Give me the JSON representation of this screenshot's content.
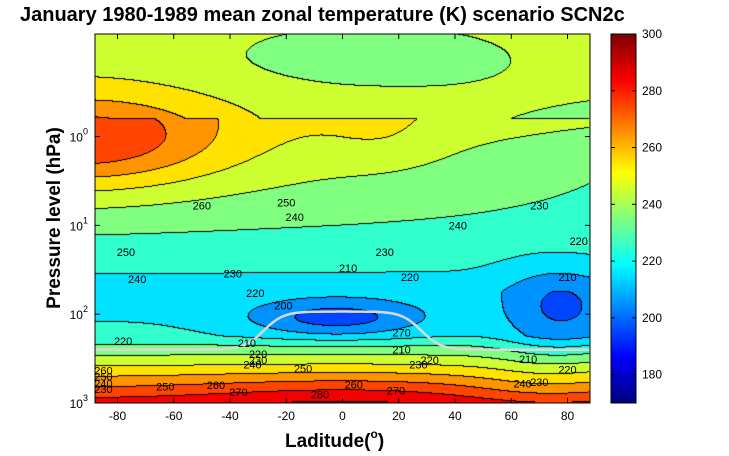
{
  "chart_data": {
    "type": "heatmap",
    "subtype": "filled-contour",
    "title": "January 1980-1989 mean zonal temperature (K) scenario SCN2c",
    "xlabel": "Laditude(",
    "xlabel_superscript": "o",
    "xlabel_suffix": ")",
    "ylabel": "Pressure level (hPa)",
    "xlim": [
      -88,
      88
    ],
    "xticks": [
      -80,
      -60,
      -40,
      -20,
      0,
      20,
      40,
      60,
      80
    ],
    "yscale": "log",
    "ylim": [
      0.07,
      1000
    ],
    "y_reversed": true,
    "yticks": [
      {
        "value": 1,
        "base": "10",
        "exp": "0"
      },
      {
        "value": 10,
        "base": "10",
        "exp": "1"
      },
      {
        "value": 100,
        "base": "10",
        "exp": "2"
      },
      {
        "value": 1000,
        "base": "10",
        "exp": "3"
      }
    ],
    "colorbar": {
      "min": 170,
      "max": 300,
      "ticks": [
        180,
        200,
        220,
        240,
        260,
        280,
        300
      ],
      "colormap": "jet"
    },
    "contour_interval": 10,
    "contour_labels": [
      {
        "text": "250",
        "lat": -77,
        "p": 20
      },
      {
        "text": "240",
        "lat": -73,
        "p": 40
      },
      {
        "text": "260",
        "lat": -50,
        "p": 6
      },
      {
        "text": "250",
        "lat": -20,
        "p": 5.5
      },
      {
        "text": "240",
        "lat": -17,
        "p": 8
      },
      {
        "text": "230",
        "lat": -39,
        "p": 35
      },
      {
        "text": "220",
        "lat": -31,
        "p": 58
      },
      {
        "text": "230",
        "lat": 15,
        "p": 20
      },
      {
        "text": "220",
        "lat": 24,
        "p": 38
      },
      {
        "text": "210",
        "lat": 2,
        "p": 30
      },
      {
        "text": "200",
        "lat": -21,
        "p": 80
      },
      {
        "text": "220",
        "lat": -78,
        "p": 200
      },
      {
        "text": "210",
        "lat": -34,
        "p": 210
      },
      {
        "text": "220",
        "lat": -30,
        "p": 280
      },
      {
        "text": "230",
        "lat": -30,
        "p": 330
      },
      {
        "text": "240",
        "lat": -32,
        "p": 370
      },
      {
        "text": "250",
        "lat": -14,
        "p": 410
      },
      {
        "text": "260",
        "lat": 4,
        "p": 620
      },
      {
        "text": "280",
        "lat": -8,
        "p": 800
      },
      {
        "text": "270",
        "lat": 19,
        "p": 720
      },
      {
        "text": "210",
        "lat": 21,
        "p": 250
      },
      {
        "text": "220",
        "lat": 31,
        "p": 330
      },
      {
        "text": "230",
        "lat": 27,
        "p": 370
      },
      {
        "text": "270",
        "lat": 21,
        "p": 160
      },
      {
        "text": "240",
        "lat": 41,
        "p": 10
      },
      {
        "text": "230",
        "lat": 70,
        "p": 6
      },
      {
        "text": "220",
        "lat": 84,
        "p": 15
      },
      {
        "text": "210",
        "lat": 80,
        "p": 38
      },
      {
        "text": "210",
        "lat": 66,
        "p": 320
      },
      {
        "text": "220",
        "lat": 80,
        "p": 420
      },
      {
        "text": "240",
        "lat": 64,
        "p": 600
      },
      {
        "text": "230",
        "lat": 70,
        "p": 580
      },
      {
        "text": "250",
        "lat": -63,
        "p": 650
      },
      {
        "text": "260",
        "lat": -45,
        "p": 630
      },
      {
        "text": "270",
        "lat": -37,
        "p": 750
      },
      {
        "text": "260",
        "lat": -85,
        "p": 430
      },
      {
        "text": "250",
        "lat": -85,
        "p": 500
      },
      {
        "text": "240",
        "lat": -85,
        "p": 600
      },
      {
        "text": "230",
        "lat": -85,
        "p": 700
      }
    ]
  }
}
